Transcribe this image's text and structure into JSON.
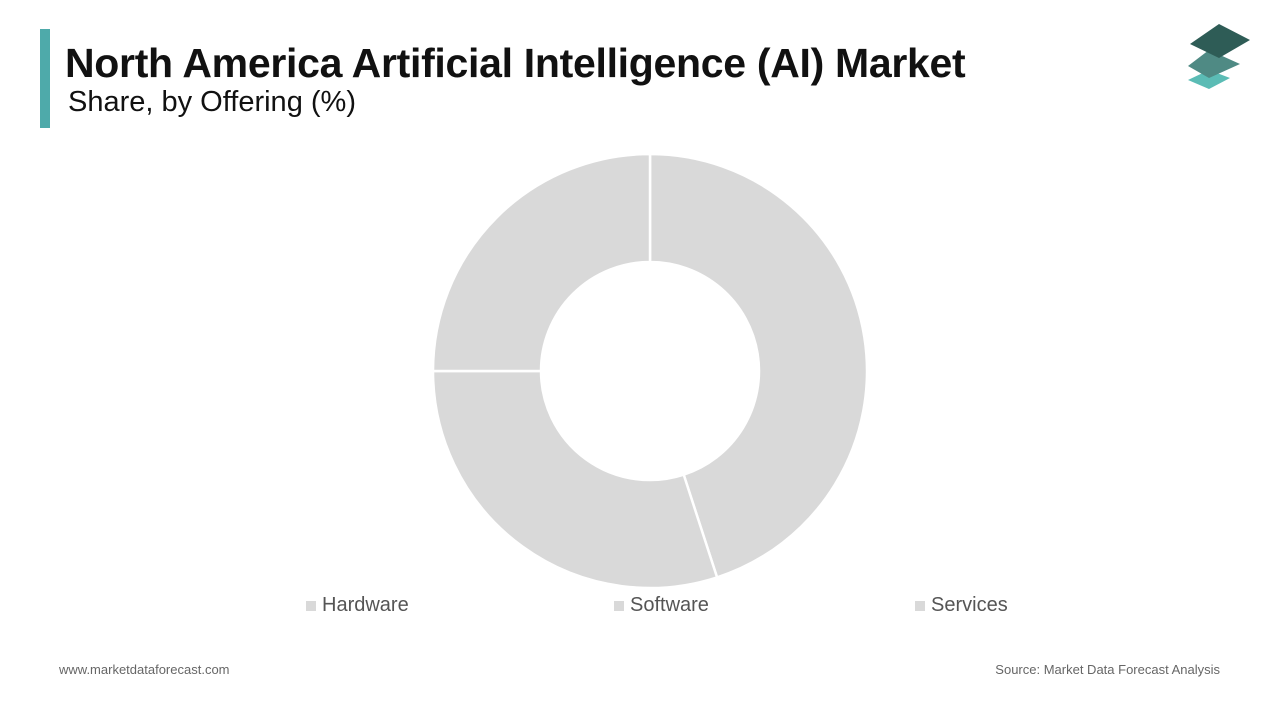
{
  "header": {
    "title": "North America Artificial Intelligence (AI) Market",
    "subtitle": "Share, by Offering (%)",
    "accent_color": "#4eaaaa"
  },
  "logo": {
    "icon": "stacked-layers-logo-icon",
    "colors": [
      "#2e5c56",
      "#4f8a84",
      "#5bbcb5"
    ]
  },
  "chart_data": {
    "type": "donut",
    "title": "",
    "categories": [
      "Hardware",
      "Software",
      "Services"
    ],
    "values": [
      45,
      30,
      25
    ],
    "colors": [
      "#d9d9d9",
      "#d9d9d9",
      "#d9d9d9"
    ],
    "start_angle_deg": 0,
    "direction": "clockwise",
    "legend_position": "bottom"
  },
  "footer": {
    "website": "www.marketdataforecast.com",
    "source": "Source: Market Data Forecast Analysis"
  }
}
